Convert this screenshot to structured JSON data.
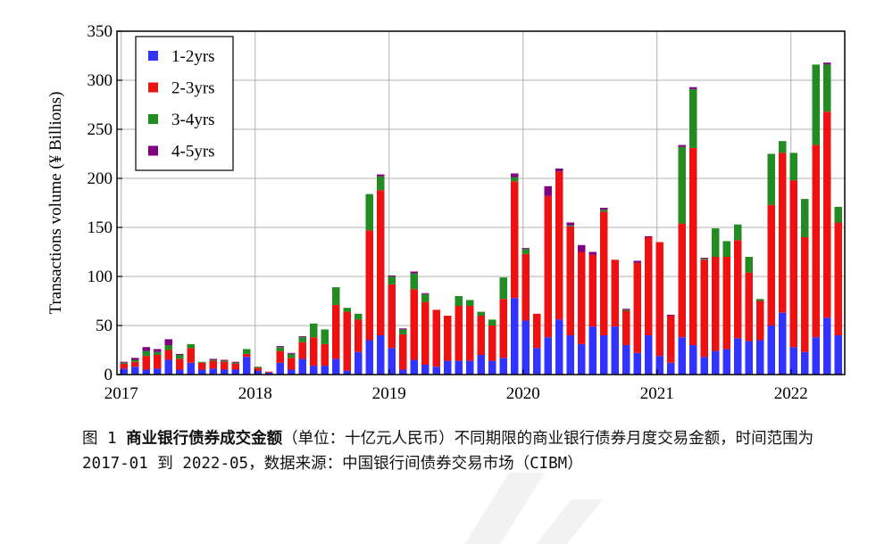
{
  "colors": {
    "s1": "#3333ff",
    "s2": "#ee1111",
    "s3": "#228b22",
    "s4": "#800080",
    "grid": "#b0b0b0"
  },
  "caption": {
    "prefix": "图 1 ",
    "bold": "商业银行债券成交金额",
    "rest": "（单位：十亿元人民币）不同期限的商业银行债券月度交易金额，时间范围为 2017-01 到 2022-05，数据来源：中国银行间债券交易市场（CIBM）"
  },
  "chart_data": {
    "type": "bar",
    "stacked": true,
    "ylabel": "Transactions volume (¥ Billions)",
    "xlabel": "",
    "ylim": [
      0,
      350
    ],
    "yticks": [
      0,
      50,
      100,
      150,
      200,
      250,
      300,
      350
    ],
    "xticks": [
      "2017",
      "2018",
      "2019",
      "2020",
      "2021",
      "2022"
    ],
    "grid": true,
    "legend_position": "top-left",
    "categories": [
      "2017-01",
      "2017-02",
      "2017-03",
      "2017-04",
      "2017-05",
      "2017-06",
      "2017-07",
      "2017-08",
      "2017-09",
      "2017-10",
      "2017-11",
      "2017-12",
      "2018-01",
      "2018-02",
      "2018-03",
      "2018-04",
      "2018-05",
      "2018-06",
      "2018-07",
      "2018-08",
      "2018-09",
      "2018-10",
      "2018-11",
      "2018-12",
      "2019-01",
      "2019-02",
      "2019-03",
      "2019-04",
      "2019-05",
      "2019-06",
      "2019-07",
      "2019-08",
      "2019-09",
      "2019-10",
      "2019-11",
      "2019-12",
      "2020-01",
      "2020-02",
      "2020-03",
      "2020-04",
      "2020-05",
      "2020-06",
      "2020-07",
      "2020-08",
      "2020-09",
      "2020-10",
      "2020-11",
      "2020-12",
      "2021-01",
      "2021-02",
      "2021-03",
      "2021-04",
      "2021-05",
      "2021-06",
      "2021-07",
      "2021-08",
      "2021-09",
      "2021-10",
      "2021-11",
      "2021-12",
      "2022-01",
      "2022-02",
      "2022-03",
      "2022-04",
      "2022-05"
    ],
    "series": [
      {
        "name": "1-2yrs",
        "values": [
          6,
          8,
          5,
          6,
          15,
          5,
          12,
          5,
          6,
          5,
          5,
          18,
          4,
          2,
          12,
          5,
          16,
          9,
          9,
          16,
          4,
          23,
          35,
          40,
          27,
          5,
          15,
          10,
          8,
          14,
          14,
          14,
          20,
          14,
          17,
          78,
          55,
          27,
          38,
          56,
          40,
          31,
          49,
          40,
          49,
          30,
          22,
          40,
          19,
          12,
          38,
          30,
          18,
          24,
          26,
          37,
          34,
          35,
          50,
          63,
          28,
          23,
          38,
          58,
          40
        ]
      },
      {
        "name": "2-3yrs",
        "values": [
          5,
          5,
          14,
          14,
          10,
          11,
          15,
          7,
          8,
          8,
          6,
          3,
          3,
          1,
          12,
          12,
          17,
          29,
          22,
          55,
          60,
          33,
          112,
          148,
          65,
          36,
          72,
          64,
          58,
          46,
          56,
          56,
          40,
          36,
          60,
          119,
          68,
          35,
          144,
          151,
          111,
          94,
          73,
          126,
          68,
          35,
          92,
          100,
          116,
          48,
          116,
          201,
          99,
          96,
          94,
          100,
          70,
          40,
          123,
          163,
          170,
          117,
          196,
          210,
          115
        ]
      },
      {
        "name": "3-4yrs",
        "values": [
          1,
          2,
          5,
          3,
          5,
          4,
          4,
          1,
          1,
          1,
          1,
          5,
          1,
          0,
          4,
          4,
          5,
          14,
          15,
          18,
          4,
          6,
          37,
          14,
          8,
          5,
          16,
          8,
          0,
          0,
          10,
          6,
          4,
          6,
          22,
          4,
          5,
          0,
          0,
          0,
          1,
          0,
          0,
          2,
          0,
          1,
          0,
          0,
          0,
          0,
          78,
          60,
          1,
          29,
          16,
          16,
          16,
          2,
          52,
          12,
          28,
          39,
          82,
          48,
          16
        ]
      },
      {
        "name": "4-5yrs",
        "values": [
          1,
          2,
          4,
          3,
          6,
          1,
          0,
          0,
          1,
          1,
          1,
          0,
          0,
          0,
          1,
          1,
          1,
          0,
          0,
          0,
          0,
          0,
          0,
          2,
          1,
          1,
          2,
          1,
          0,
          0,
          0,
          0,
          0,
          0,
          0,
          4,
          1,
          0,
          10,
          3,
          3,
          7,
          3,
          2,
          0,
          1,
          2,
          1,
          0,
          1,
          2,
          2,
          1,
          0,
          0,
          0,
          0,
          0,
          0,
          0,
          0,
          0,
          0,
          2,
          0
        ]
      }
    ]
  }
}
